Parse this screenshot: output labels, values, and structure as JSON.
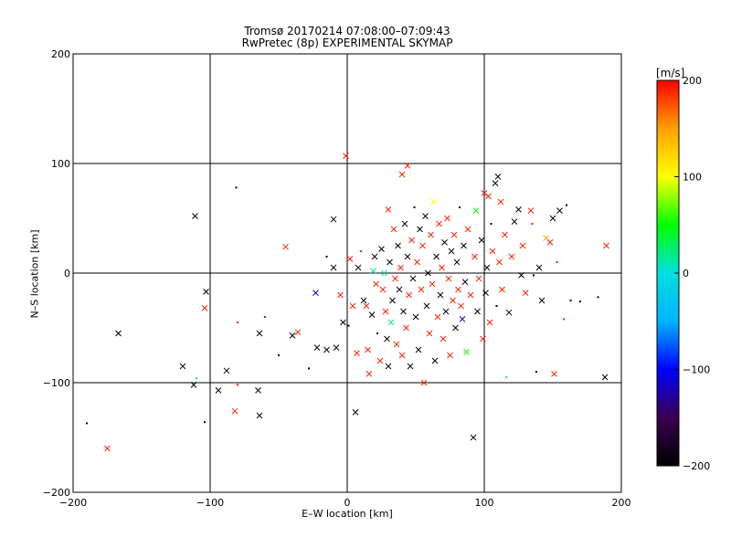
{
  "chart_data": {
    "type": "scatter",
    "title": "Tromsø 20170214 07:08:00–07:09:43",
    "subtitle": "RwPretec (8p) EXPERIMENTAL SKYMAP",
    "xlabel": "E–W location [km]",
    "ylabel": "N–S location [km]",
    "xlim": [
      -200,
      200
    ],
    "ylim": [
      -200,
      200
    ],
    "x_ticks": [
      -200,
      -100,
      0,
      100,
      200
    ],
    "y_ticks": [
      -200,
      -100,
      0,
      100,
      200
    ],
    "grid": true,
    "colorbar": {
      "label": "[m/s]",
      "range": [
        -200,
        200
      ],
      "ticks": [
        200,
        100,
        0,
        -100,
        -200
      ],
      "colors": [
        "#000000",
        "#3a0050",
        "#0000ff",
        "#00b4ff",
        "#00e0e0",
        "#00ff00",
        "#ffff00",
        "#ffa000",
        "#ff0000"
      ]
    },
    "legend": "none",
    "marker_types": [
      "cross",
      "dot"
    ],
    "points": [
      {
        "x": -175,
        "y": -160,
        "v": 190,
        "m": "cross"
      },
      {
        "x": -190,
        "y": -137,
        "v": -190,
        "m": "dot"
      },
      {
        "x": -167,
        "y": -55,
        "v": -200,
        "m": "cross"
      },
      {
        "x": -120,
        "y": -85,
        "v": -200,
        "m": "cross"
      },
      {
        "x": -112,
        "y": -102,
        "v": -200,
        "m": "cross"
      },
      {
        "x": -110,
        "y": -96,
        "v": 20,
        "m": "dot"
      },
      {
        "x": -111,
        "y": 52,
        "v": -200,
        "m": "cross"
      },
      {
        "x": -103,
        "y": -17,
        "v": -200,
        "m": "cross"
      },
      {
        "x": -104,
        "y": -32,
        "v": 190,
        "m": "cross"
      },
      {
        "x": -104,
        "y": -136,
        "v": -200,
        "m": "dot"
      },
      {
        "x": -94,
        "y": -107,
        "v": -200,
        "m": "cross"
      },
      {
        "x": -88,
        "y": -89,
        "v": -200,
        "m": "cross"
      },
      {
        "x": -82,
        "y": -126,
        "v": 190,
        "m": "cross"
      },
      {
        "x": -80,
        "y": -102,
        "v": 190,
        "m": "dot"
      },
      {
        "x": -81,
        "y": 78,
        "v": -200,
        "m": "dot"
      },
      {
        "x": -80,
        "y": -45,
        "v": 190,
        "m": "dot"
      },
      {
        "x": -65,
        "y": -107,
        "v": -200,
        "m": "cross"
      },
      {
        "x": -64,
        "y": -130,
        "v": -200,
        "m": "cross"
      },
      {
        "x": -64,
        "y": -55,
        "v": -200,
        "m": "cross"
      },
      {
        "x": -60,
        "y": -40,
        "v": -80,
        "m": "dot"
      },
      {
        "x": -50,
        "y": -75,
        "v": -200,
        "m": "dot"
      },
      {
        "x": -45,
        "y": 24,
        "v": 190,
        "m": "cross"
      },
      {
        "x": -40,
        "y": -57,
        "v": -200,
        "m": "cross"
      },
      {
        "x": -36,
        "y": -54,
        "v": 190,
        "m": "cross"
      },
      {
        "x": -28,
        "y": -87,
        "v": -200,
        "m": "dot"
      },
      {
        "x": -23,
        "y": -18,
        "v": -110,
        "m": "cross"
      },
      {
        "x": -22,
        "y": -68,
        "v": -200,
        "m": "cross"
      },
      {
        "x": -15,
        "y": -70,
        "v": -200,
        "m": "cross"
      },
      {
        "x": -15,
        "y": 15,
        "v": -200,
        "m": "dot"
      },
      {
        "x": -10,
        "y": 49,
        "v": -200,
        "m": "cross"
      },
      {
        "x": -10,
        "y": 5,
        "v": -200,
        "m": "cross"
      },
      {
        "x": -8,
        "y": -68,
        "v": -200,
        "m": "cross"
      },
      {
        "x": -5,
        "y": -20,
        "v": 190,
        "m": "cross"
      },
      {
        "x": -3,
        "y": -45,
        "v": -200,
        "m": "cross"
      },
      {
        "x": -1,
        "y": 107,
        "v": 190,
        "m": "cross"
      },
      {
        "x": 1,
        "y": -48,
        "v": -200,
        "m": "dot"
      },
      {
        "x": 2,
        "y": 13,
        "v": 190,
        "m": "cross"
      },
      {
        "x": 4,
        "y": -30,
        "v": 190,
        "m": "cross"
      },
      {
        "x": 6,
        "y": -127,
        "v": -200,
        "m": "cross"
      },
      {
        "x": 7,
        "y": -73,
        "v": 190,
        "m": "cross"
      },
      {
        "x": 8,
        "y": 5,
        "v": -200,
        "m": "cross"
      },
      {
        "x": 10,
        "y": 20,
        "v": 190,
        "m": "dot"
      },
      {
        "x": 12,
        "y": -25,
        "v": -200,
        "m": "cross"
      },
      {
        "x": 14,
        "y": -30,
        "v": 190,
        "m": "cross"
      },
      {
        "x": 15,
        "y": -70,
        "v": 190,
        "m": "cross"
      },
      {
        "x": 16,
        "y": -92,
        "v": 190,
        "m": "cross"
      },
      {
        "x": 18,
        "y": -38,
        "v": -200,
        "m": "cross"
      },
      {
        "x": 19,
        "y": 2,
        "v": 20,
        "m": "cross"
      },
      {
        "x": 20,
        "y": 15,
        "v": -200,
        "m": "cross"
      },
      {
        "x": 21,
        "y": -10,
        "v": 190,
        "m": "cross"
      },
      {
        "x": 22,
        "y": -55,
        "v": -200,
        "m": "dot"
      },
      {
        "x": 24,
        "y": -80,
        "v": 190,
        "m": "cross"
      },
      {
        "x": 25,
        "y": 22,
        "v": -200,
        "m": "cross"
      },
      {
        "x": 26,
        "y": -15,
        "v": 190,
        "m": "cross"
      },
      {
        "x": 27,
        "y": 0,
        "v": 20,
        "m": "cross"
      },
      {
        "x": 28,
        "y": -35,
        "v": 190,
        "m": "cross"
      },
      {
        "x": 29,
        "y": -60,
        "v": -200,
        "m": "cross"
      },
      {
        "x": 30,
        "y": 58,
        "v": 190,
        "m": "cross"
      },
      {
        "x": 30,
        "y": -85,
        "v": -200,
        "m": "cross"
      },
      {
        "x": 31,
        "y": 10,
        "v": -200,
        "m": "cross"
      },
      {
        "x": 32,
        "y": -45,
        "v": 20,
        "m": "cross"
      },
      {
        "x": 33,
        "y": -25,
        "v": -200,
        "m": "cross"
      },
      {
        "x": 34,
        "y": 40,
        "v": 190,
        "m": "cross"
      },
      {
        "x": 35,
        "y": -5,
        "v": 190,
        "m": "cross"
      },
      {
        "x": 36,
        "y": -65,
        "v": 190,
        "m": "cross"
      },
      {
        "x": 37,
        "y": 25,
        "v": -200,
        "m": "cross"
      },
      {
        "x": 38,
        "y": -15,
        "v": -200,
        "m": "cross"
      },
      {
        "x": 39,
        "y": 5,
        "v": 190,
        "m": "cross"
      },
      {
        "x": 40,
        "y": 90,
        "v": 190,
        "m": "cross"
      },
      {
        "x": 40,
        "y": -75,
        "v": 190,
        "m": "cross"
      },
      {
        "x": 41,
        "y": -35,
        "v": -200,
        "m": "cross"
      },
      {
        "x": 42,
        "y": 45,
        "v": -200,
        "m": "cross"
      },
      {
        "x": 43,
        "y": -50,
        "v": 190,
        "m": "cross"
      },
      {
        "x": 44,
        "y": 15,
        "v": -200,
        "m": "cross"
      },
      {
        "x": 44,
        "y": 98,
        "v": 190,
        "m": "cross"
      },
      {
        "x": 45,
        "y": -20,
        "v": 190,
        "m": "cross"
      },
      {
        "x": 46,
        "y": -85,
        "v": -200,
        "m": "cross"
      },
      {
        "x": 47,
        "y": 30,
        "v": 190,
        "m": "cross"
      },
      {
        "x": 48,
        "y": -5,
        "v": -200,
        "m": "cross"
      },
      {
        "x": 49,
        "y": 60,
        "v": -200,
        "m": "dot"
      },
      {
        "x": 50,
        "y": -40,
        "v": -200,
        "m": "cross"
      },
      {
        "x": 51,
        "y": 10,
        "v": 190,
        "m": "cross"
      },
      {
        "x": 52,
        "y": -70,
        "v": -200,
        "m": "cross"
      },
      {
        "x": 53,
        "y": 40,
        "v": -200,
        "m": "cross"
      },
      {
        "x": 54,
        "y": -15,
        "v": 190,
        "m": "cross"
      },
      {
        "x": 55,
        "y": 25,
        "v": 190,
        "m": "cross"
      },
      {
        "x": 56,
        "y": -100,
        "v": 190,
        "m": "cross"
      },
      {
        "x": 57,
        "y": 52,
        "v": -200,
        "m": "cross"
      },
      {
        "x": 58,
        "y": -30,
        "v": -200,
        "m": "cross"
      },
      {
        "x": 59,
        "y": 0,
        "v": -200,
        "m": "cross"
      },
      {
        "x": 60,
        "y": -55,
        "v": 190,
        "m": "cross"
      },
      {
        "x": 61,
        "y": 35,
        "v": 190,
        "m": "cross"
      },
      {
        "x": 62,
        "y": -10,
        "v": 190,
        "m": "cross"
      },
      {
        "x": 63,
        "y": 65,
        "v": 100,
        "m": "cross"
      },
      {
        "x": 64,
        "y": -80,
        "v": -200,
        "m": "cross"
      },
      {
        "x": 65,
        "y": 15,
        "v": -200,
        "m": "cross"
      },
      {
        "x": 66,
        "y": -40,
        "v": 190,
        "m": "cross"
      },
      {
        "x": 67,
        "y": 45,
        "v": 190,
        "m": "cross"
      },
      {
        "x": 68,
        "y": -20,
        "v": -200,
        "m": "cross"
      },
      {
        "x": 69,
        "y": 5,
        "v": 190,
        "m": "cross"
      },
      {
        "x": 70,
        "y": -60,
        "v": 190,
        "m": "cross"
      },
      {
        "x": 71,
        "y": 28,
        "v": -200,
        "m": "cross"
      },
      {
        "x": 72,
        "y": -35,
        "v": -200,
        "m": "cross"
      },
      {
        "x": 73,
        "y": 50,
        "v": 190,
        "m": "cross"
      },
      {
        "x": 74,
        "y": -5,
        "v": 190,
        "m": "cross"
      },
      {
        "x": 75,
        "y": -75,
        "v": 190,
        "m": "cross"
      },
      {
        "x": 76,
        "y": 20,
        "v": -200,
        "m": "cross"
      },
      {
        "x": 77,
        "y": -25,
        "v": 190,
        "m": "cross"
      },
      {
        "x": 78,
        "y": 35,
        "v": 190,
        "m": "cross"
      },
      {
        "x": 79,
        "y": -50,
        "v": -200,
        "m": "cross"
      },
      {
        "x": 80,
        "y": 10,
        "v": -200,
        "m": "cross"
      },
      {
        "x": 81,
        "y": -15,
        "v": 190,
        "m": "cross"
      },
      {
        "x": 82,
        "y": 60,
        "v": -200,
        "m": "dot"
      },
      {
        "x": 83,
        "y": -30,
        "v": 190,
        "m": "cross"
      },
      {
        "x": 84,
        "y": -42,
        "v": -110,
        "m": "cross"
      },
      {
        "x": 85,
        "y": 25,
        "v": -200,
        "m": "cross"
      },
      {
        "x": 86,
        "y": -8,
        "v": -200,
        "m": "cross"
      },
      {
        "x": 87,
        "y": -72,
        "v": 50,
        "m": "cross"
      },
      {
        "x": 88,
        "y": 40,
        "v": 190,
        "m": "cross"
      },
      {
        "x": 90,
        "y": -20,
        "v": 190,
        "m": "cross"
      },
      {
        "x": 92,
        "y": -150,
        "v": -200,
        "m": "cross"
      },
      {
        "x": 93,
        "y": 15,
        "v": 190,
        "m": "cross"
      },
      {
        "x": 94,
        "y": 57,
        "v": 50,
        "m": "cross"
      },
      {
        "x": 95,
        "y": -35,
        "v": -200,
        "m": "cross"
      },
      {
        "x": 96,
        "y": -5,
        "v": 190,
        "m": "cross"
      },
      {
        "x": 98,
        "y": 30,
        "v": -200,
        "m": "cross"
      },
      {
        "x": 99,
        "y": -60,
        "v": 190,
        "m": "cross"
      },
      {
        "x": 100,
        "y": 73,
        "v": 190,
        "m": "cross"
      },
      {
        "x": 101,
        "y": -18,
        "v": -200,
        "m": "cross"
      },
      {
        "x": 102,
        "y": 5,
        "v": -200,
        "m": "cross"
      },
      {
        "x": 103,
        "y": 70,
        "v": 190,
        "m": "cross"
      },
      {
        "x": 104,
        "y": -45,
        "v": 190,
        "m": "cross"
      },
      {
        "x": 105,
        "y": 45,
        "v": -200,
        "m": "dot"
      },
      {
        "x": 106,
        "y": 20,
        "v": 190,
        "m": "cross"
      },
      {
        "x": 108,
        "y": 82,
        "v": -200,
        "m": "cross"
      },
      {
        "x": 109,
        "y": -30,
        "v": -200,
        "m": "dot"
      },
      {
        "x": 110,
        "y": 88,
        "v": -200,
        "m": "cross"
      },
      {
        "x": 111,
        "y": 10,
        "v": 190,
        "m": "cross"
      },
      {
        "x": 112,
        "y": 65,
        "v": 190,
        "m": "cross"
      },
      {
        "x": 113,
        "y": -15,
        "v": 190,
        "m": "cross"
      },
      {
        "x": 115,
        "y": 35,
        "v": 190,
        "m": "cross"
      },
      {
        "x": 116,
        "y": -95,
        "v": 20,
        "m": "dot"
      },
      {
        "x": 118,
        "y": -36,
        "v": -200,
        "m": "cross"
      },
      {
        "x": 120,
        "y": 15,
        "v": 190,
        "m": "cross"
      },
      {
        "x": 122,
        "y": 47,
        "v": -200,
        "m": "cross"
      },
      {
        "x": 125,
        "y": 58,
        "v": -200,
        "m": "cross"
      },
      {
        "x": 127,
        "y": -2,
        "v": -200,
        "m": "cross"
      },
      {
        "x": 128,
        "y": 25,
        "v": 190,
        "m": "cross"
      },
      {
        "x": 130,
        "y": -18,
        "v": 190,
        "m": "cross"
      },
      {
        "x": 134,
        "y": 57,
        "v": 190,
        "m": "cross"
      },
      {
        "x": 135,
        "y": 45,
        "v": 190,
        "m": "dot"
      },
      {
        "x": 136,
        "y": -2,
        "v": -200,
        "m": "dot"
      },
      {
        "x": 138,
        "y": -90,
        "v": -200,
        "m": "dot"
      },
      {
        "x": 140,
        "y": 5,
        "v": -200,
        "m": "cross"
      },
      {
        "x": 142,
        "y": -25,
        "v": -200,
        "m": "cross"
      },
      {
        "x": 145,
        "y": 32,
        "v": 150,
        "m": "cross"
      },
      {
        "x": 148,
        "y": 28,
        "v": 190,
        "m": "cross"
      },
      {
        "x": 150,
        "y": 50,
        "v": -200,
        "m": "cross"
      },
      {
        "x": 151,
        "y": -92,
        "v": 190,
        "m": "cross"
      },
      {
        "x": 153,
        "y": 10,
        "v": 190,
        "m": "dot"
      },
      {
        "x": 155,
        "y": 57,
        "v": -200,
        "m": "cross"
      },
      {
        "x": 158,
        "y": -42,
        "v": 190,
        "m": "dot"
      },
      {
        "x": 160,
        "y": 62,
        "v": -200,
        "m": "dot"
      },
      {
        "x": 163,
        "y": -25,
        "v": -200,
        "m": "dot"
      },
      {
        "x": 170,
        "y": -26,
        "v": -200,
        "m": "dot"
      },
      {
        "x": 183,
        "y": -22,
        "v": -200,
        "m": "dot"
      },
      {
        "x": 189,
        "y": 25,
        "v": 190,
        "m": "cross"
      },
      {
        "x": 188,
        "y": -95,
        "v": -200,
        "m": "cross"
      }
    ]
  }
}
